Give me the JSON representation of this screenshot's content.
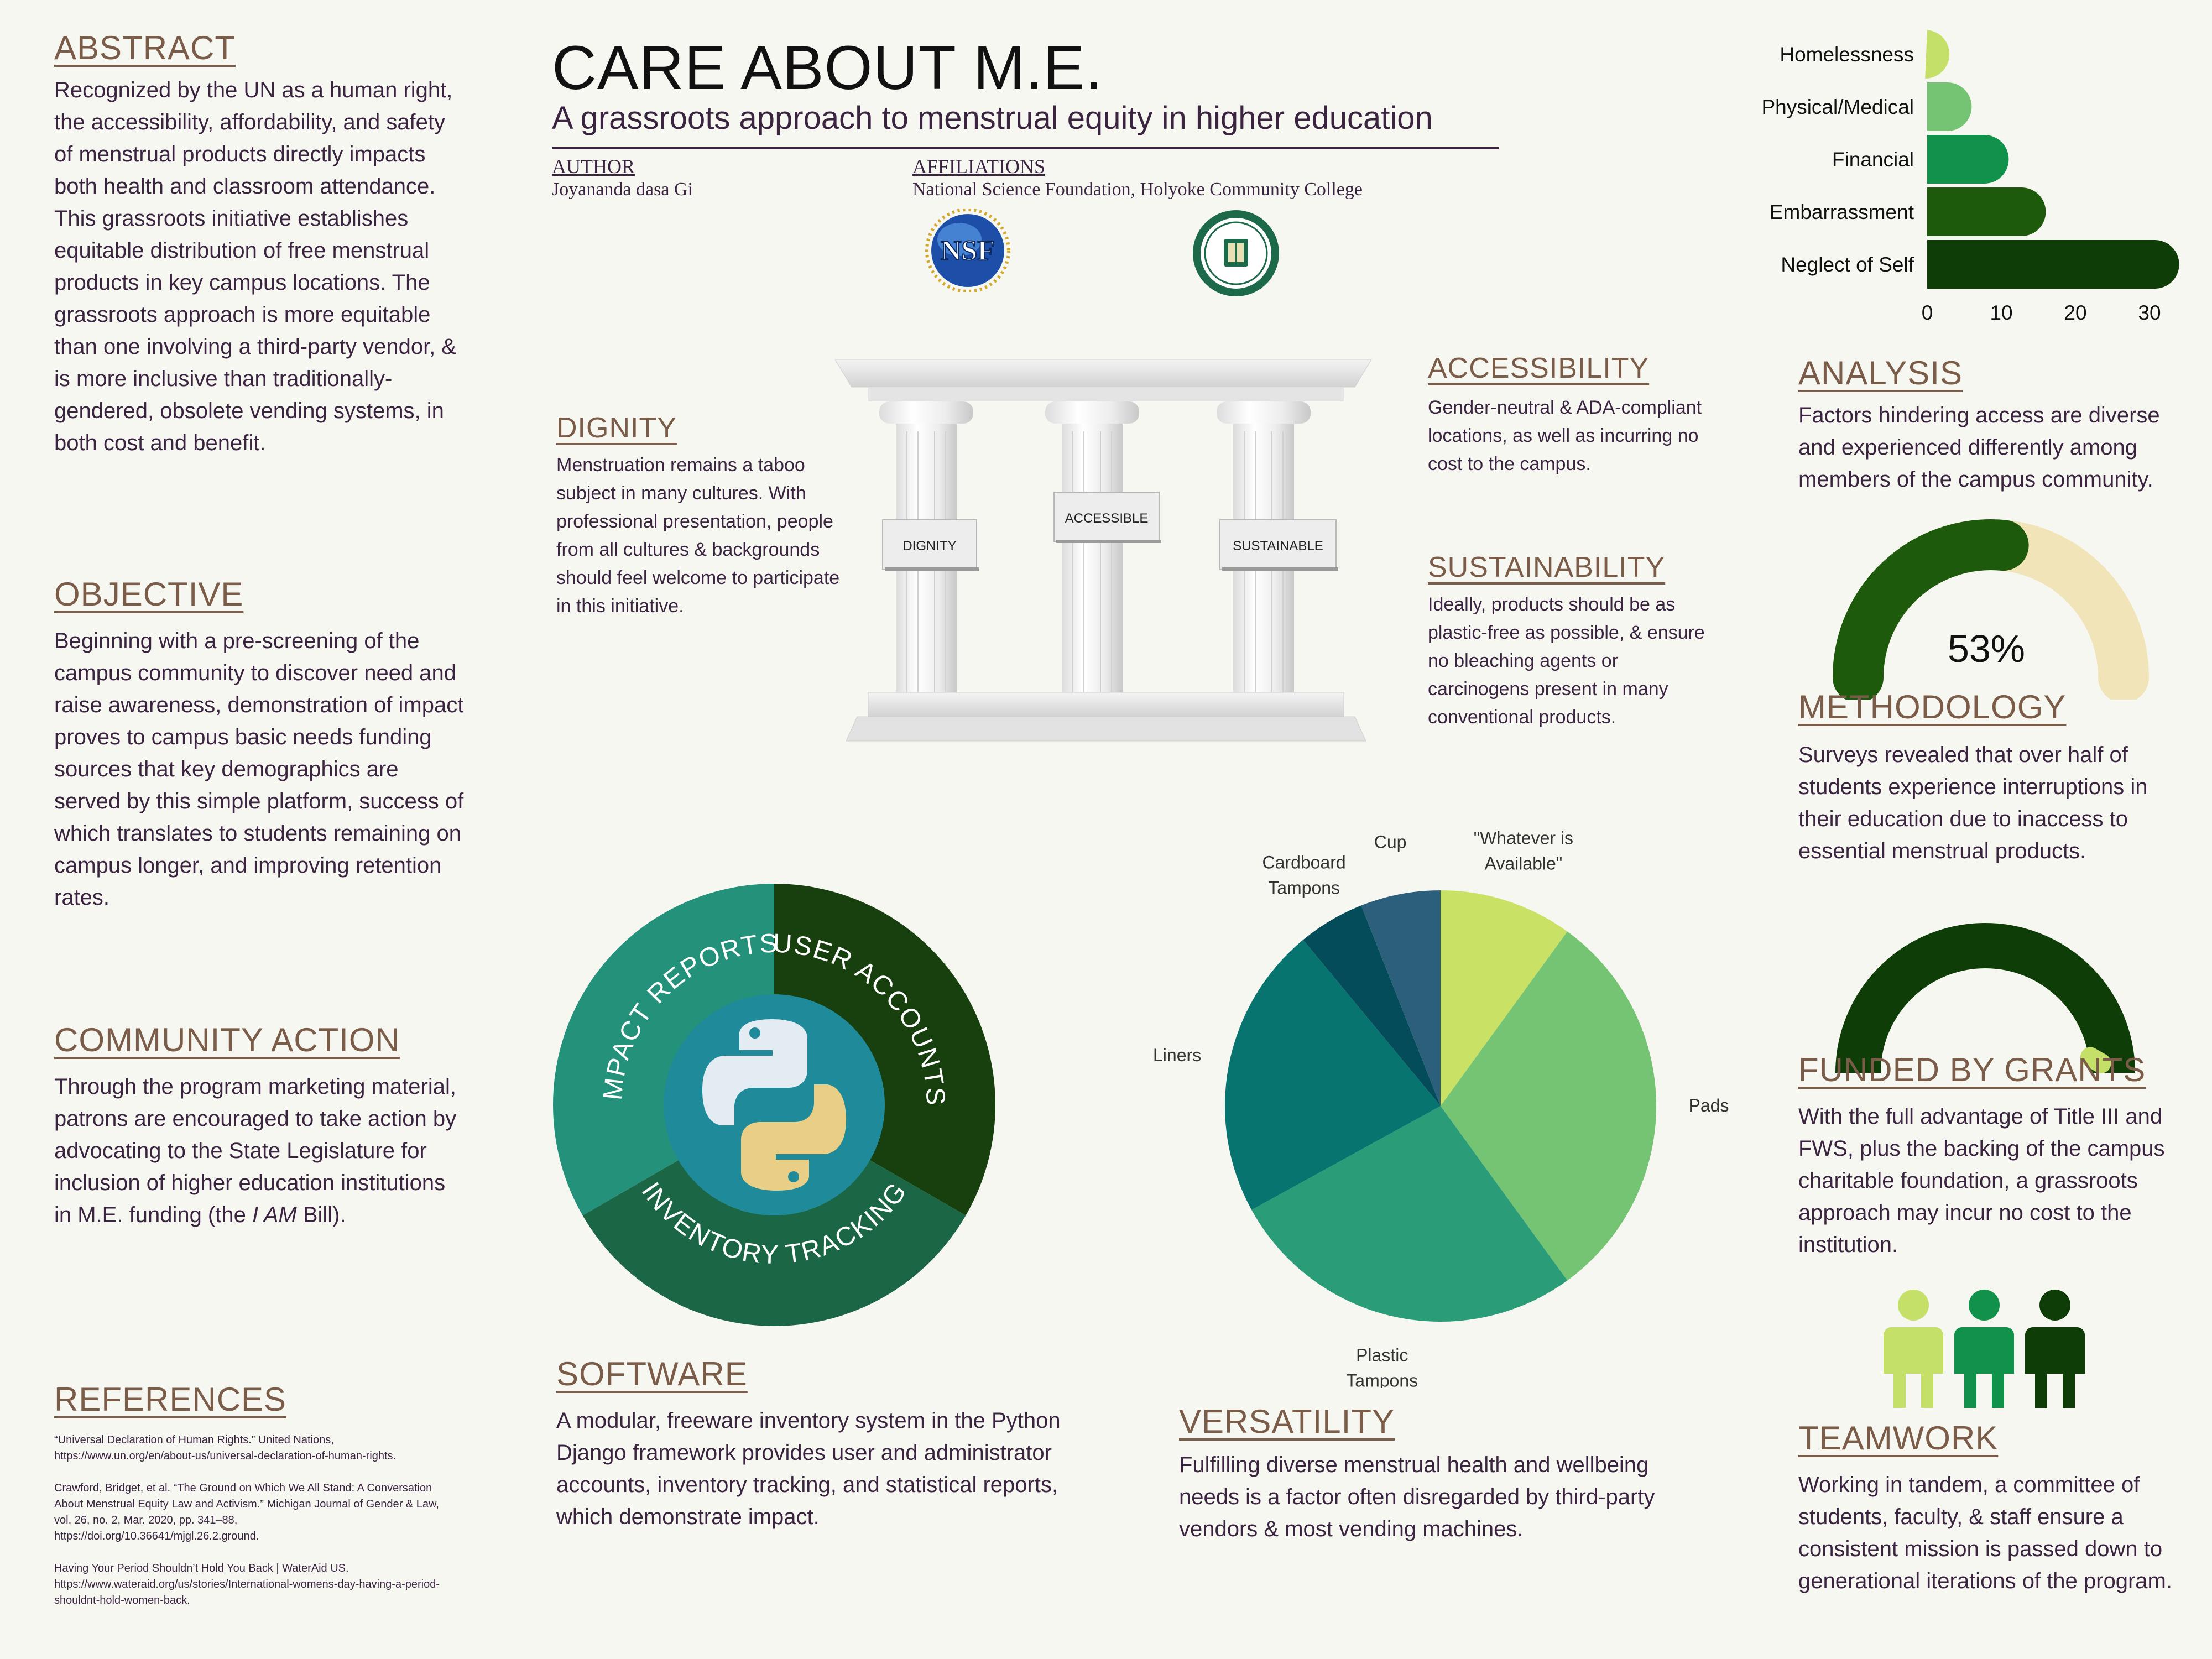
{
  "title": "CARE ABOUT M.E.",
  "subtitle": "A grassroots approach to menstrual equity in higher education",
  "author": {
    "heading": "AUTHOR",
    "name": "Joyananda dasa Gi"
  },
  "affiliations": {
    "heading": "AFFILIATIONS",
    "text": "National Science Foundation, Holyoke Community College",
    "nsf_logo_text": "NSF"
  },
  "abstract": {
    "heading": "ABSTRACT",
    "text": "Recognized by the UN as a human right, the accessibility, affordability, and safety of menstrual products directly impacts both health and classroom attendance. This grassroots initiative establishes equitable distribution of free menstrual products in key campus locations. The grassroots approach is more equitable than one involving a third-party vendor, & is more inclusive than traditionally-gendered, obsolete vending systems, in both cost and benefit."
  },
  "objective": {
    "heading": "OBJECTIVE",
    "text": "Beginning with a pre-screening of the campus community to discover need and raise awareness, demonstration of impact proves to campus basic needs funding sources that key demographics are served by this simple platform, success of which translates to students remaining on campus longer, and improving retention rates."
  },
  "community_action": {
    "heading": "COMMUNITY ACTION",
    "text_before": "Through the program marketing material, patrons are encouraged to take action by advocating to the State Legislature for inclusion of higher education institutions in M.E. funding (the ",
    "text_italic": "I AM",
    "text_after": " Bill)."
  },
  "references": {
    "heading": "REFERENCES",
    "items": [
      "“Universal Declaration of Human Rights.” United Nations, https://www.un.org/en/about-us/universal-declaration-of-human-rights.",
      "Crawford, Bridget, et al. “The Ground on Which We All Stand: A Conversation About Menstrual Equity Law and Activism.” Michigan Journal of Gender & Law, vol. 26, no. 2, Mar. 2020, pp. 341–88, https://doi.org/10.36641/mjgl.26.2.ground.",
      "Having Your Period Shouldn’t Hold You Back | WaterAid US. https://www.wateraid.org/us/stories/International-womens-day-having-a-period-shouldnt-hold-women-back."
    ]
  },
  "dignity": {
    "heading": "DIGNITY",
    "text": "Menstruation remains a taboo subject in many cultures. With professional presentation, people from all cultures & backgrounds should feel welcome to participate in this initiative."
  },
  "pillars": {
    "left": "DIGNITY",
    "middle": "ACCESSIBLE",
    "right": "SUSTAINABLE"
  },
  "accessibility": {
    "heading": "ACCESSIBILITY",
    "text": "Gender-neutral & ADA-compliant locations, as well as incurring no cost to the campus."
  },
  "sustainability": {
    "heading": "SUSTAINABILITY",
    "text": "Ideally, products should be as plastic-free as possible, & ensure no bleaching agents or carcinogens  present in many conventional products."
  },
  "software": {
    "heading": "SOFTWARE",
    "text": "A modular, freeware inventory system in the Python Django framework provides user and administrator accounts, inventory tracking, and statistical reports, which demonstrate impact.",
    "ring_labels": {
      "impact": "IMPACT REPORTS",
      "user": "USER ACCOUNTS",
      "inventory": "INVENTORY TRACKING"
    }
  },
  "versatility": {
    "heading": "VERSATILITY",
    "text": "Fulfilling diverse menstrual health and wellbeing needs is a factor often disregarded by third-party vendors & most vending machines."
  },
  "analysis": {
    "heading": "ANALYSIS",
    "text": "Factors hindering access are diverse and experienced differently among members of the campus community."
  },
  "gauge1": {
    "label": "53%",
    "fraction": 0.53
  },
  "methodology": {
    "heading": "METHODOLOGY",
    "text": "Surveys revealed that over half of students experience interruptions in their education due to inaccess to essential menstrual products."
  },
  "gauge2": {
    "fraction": 0.98
  },
  "funded": {
    "heading": "FUNDED BY GRANTS",
    "text": "With the full advantage of Title III and FWS, plus the backing of the campus charitable foundation, a grassroots approach may incur no cost to the institution."
  },
  "teamwork": {
    "heading": "TEAMWORK",
    "text": "Working in tandem, a committee of students, faculty, & staff ensure a consistent mission is passed down to generational iterations of the program."
  },
  "colors": {
    "light_green": "#c5e068",
    "mid_green": "#74c474",
    "green": "#10924a",
    "dark_green": "#1e5a0c",
    "darkest_green": "#0f3d08"
  },
  "chart_data": [
    {
      "type": "bar",
      "orientation": "horizontal",
      "categories": [
        "Homelessness",
        "Physical/Medical",
        "Financial",
        "Embarrassment",
        "Neglect of Self"
      ],
      "values": [
        3,
        6,
        11,
        16,
        34
      ],
      "xticks": [
        0,
        10,
        20,
        30
      ],
      "xlim": [
        0,
        34
      ],
      "colors": [
        "#c5e068",
        "#74c474",
        "#10924a",
        "#1e5a0c",
        "#0f3d08"
      ]
    },
    {
      "type": "pie",
      "categories": [
        "\"Whatever is Available\"",
        "Pads",
        "Plastic Tampons",
        "Liners",
        "Cardboard Tampons",
        "Cup"
      ],
      "values": [
        10,
        30,
        27,
        22,
        5,
        6
      ],
      "colors": [
        "#c9e265",
        "#74c474",
        "#2a9d78",
        "#087470",
        "#044c5a",
        "#2c5f7b"
      ]
    }
  ]
}
